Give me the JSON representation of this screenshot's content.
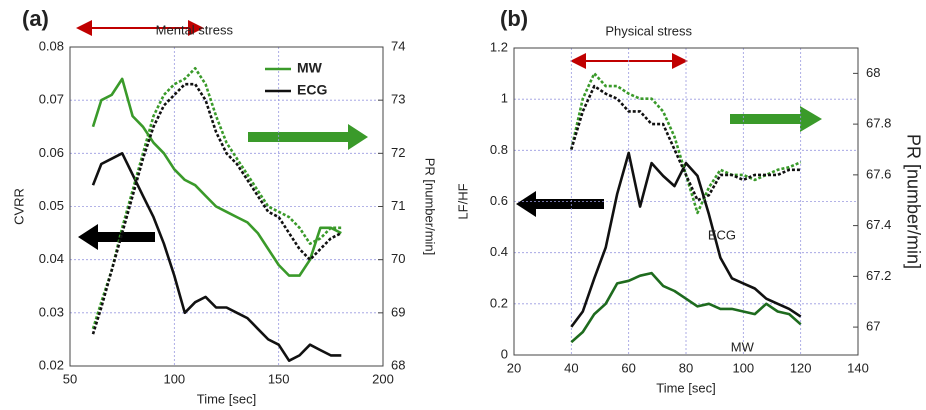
{
  "chart_data": [
    {
      "type": "line",
      "panel_label": "(a)",
      "title": "Mental stress",
      "xlabel": "Time [sec]",
      "ylabel": "CVRR",
      "y2label": "PR [number/min]",
      "x": [
        61,
        65,
        70,
        75,
        80,
        85,
        90,
        95,
        100,
        105,
        110,
        115,
        120,
        125,
        130,
        135,
        140,
        145,
        150,
        155,
        160,
        165,
        170,
        175,
        180
      ],
      "xlim": [
        50,
        200
      ],
      "xticks": [
        50,
        100,
        150,
        200
      ],
      "ylim": [
        0.02,
        0.08
      ],
      "yticks": [
        0.02,
        0.03,
        0.04,
        0.05,
        0.06,
        0.07,
        0.08
      ],
      "y2lim": [
        68,
        74
      ],
      "y2ticks": [
        68,
        69,
        70,
        71,
        72,
        73,
        74
      ],
      "grid": true,
      "legend": "upper right",
      "series": [
        {
          "name": "MW",
          "color": "#3a9a2a",
          "line_style": "solid",
          "values": [
            0.065,
            0.07,
            0.071,
            0.074,
            0.067,
            0.065,
            0.062,
            0.06,
            0.057,
            0.055,
            0.054,
            0.052,
            0.05,
            0.049,
            0.048,
            0.047,
            0.045,
            0.042,
            0.039,
            0.037,
            0.037,
            0.04,
            0.046,
            0.046,
            0.045
          ]
        },
        {
          "name": "ECG",
          "color": "#111111",
          "line_style": "solid",
          "values": [
            0.054,
            0.058,
            0.059,
            0.06,
            0.056,
            0.052,
            0.048,
            0.043,
            0.037,
            0.03,
            0.032,
            0.033,
            0.031,
            0.031,
            0.03,
            0.029,
            0.027,
            0.025,
            0.024,
            0.021,
            0.022,
            0.024,
            0.023,
            0.022,
            0.022
          ]
        },
        {
          "color": "#3a9a2a",
          "line_style": "dashed",
          "axis": "y2",
          "values": [
            68.7,
            69.2,
            69.8,
            70.6,
            71.3,
            72.0,
            72.7,
            73.1,
            73.3,
            73.4,
            73.6,
            73.3,
            72.7,
            72.2,
            71.9,
            71.6,
            71.3,
            71.0,
            70.9,
            70.8,
            70.6,
            70.3,
            70.4,
            70.6,
            70.6
          ]
        },
        {
          "color": "#111111",
          "line_style": "dashed",
          "axis": "y2",
          "values": [
            68.6,
            69.1,
            69.8,
            70.5,
            71.2,
            71.9,
            72.5,
            72.9,
            73.1,
            73.3,
            73.3,
            73.0,
            72.4,
            72.0,
            71.8,
            71.5,
            71.2,
            70.9,
            70.8,
            70.5,
            70.2,
            70.0,
            70.2,
            70.4,
            70.5
          ]
        }
      ]
    },
    {
      "type": "line",
      "panel_label": "(b)",
      "title": "Physical stress",
      "xlabel": "Time [sec]",
      "ylabel": "LF/HF",
      "y2label": "PR [number/min]",
      "x": [
        40,
        44,
        48,
        52,
        56,
        60,
        64,
        68,
        72,
        76,
        80,
        84,
        88,
        92,
        96,
        100,
        104,
        108,
        112,
        116,
        120
      ],
      "xlim": [
        20,
        140
      ],
      "xticks": [
        20,
        40,
        60,
        80,
        100,
        120,
        140
      ],
      "ylim": [
        0,
        1.2
      ],
      "yticks": [
        0,
        0.2,
        0.4,
        0.6,
        0.8,
        1,
        1.2
      ],
      "y2lim": [
        66.89,
        68.1
      ],
      "y2ticks": [
        67,
        67.2,
        67.4,
        67.6,
        67.8,
        68
      ],
      "grid": true,
      "legend": "inline",
      "series": [
        {
          "name": "ECG",
          "color": "#111111",
          "line_style": "solid",
          "values": [
            0.11,
            0.17,
            0.3,
            0.42,
            0.63,
            0.79,
            0.58,
            0.75,
            0.7,
            0.66,
            0.75,
            0.7,
            0.55,
            0.38,
            0.3,
            0.28,
            0.26,
            0.22,
            0.2,
            0.18,
            0.15
          ]
        },
        {
          "name": "MW",
          "color": "#1e6b1e",
          "line_style": "solid",
          "values": [
            0.05,
            0.09,
            0.16,
            0.2,
            0.28,
            0.29,
            0.31,
            0.32,
            0.27,
            0.25,
            0.22,
            0.19,
            0.2,
            0.18,
            0.18,
            0.17,
            0.16,
            0.2,
            0.17,
            0.16,
            0.12
          ]
        },
        {
          "color": "#3a9a2a",
          "line_style": "dashed",
          "axis": "y2",
          "values": [
            67.7,
            67.9,
            68.0,
            67.95,
            67.95,
            67.92,
            67.9,
            67.9,
            67.85,
            67.75,
            67.6,
            67.45,
            67.55,
            67.62,
            67.6,
            67.6,
            67.58,
            67.6,
            67.62,
            67.63,
            67.65
          ]
        },
        {
          "color": "#111111",
          "line_style": "dashed",
          "axis": "y2",
          "values": [
            67.7,
            67.85,
            67.95,
            67.92,
            67.9,
            67.85,
            67.85,
            67.8,
            67.8,
            67.7,
            67.6,
            67.5,
            67.52,
            67.6,
            67.6,
            67.58,
            67.6,
            67.6,
            67.6,
            67.62,
            67.62
          ]
        }
      ]
    }
  ]
}
